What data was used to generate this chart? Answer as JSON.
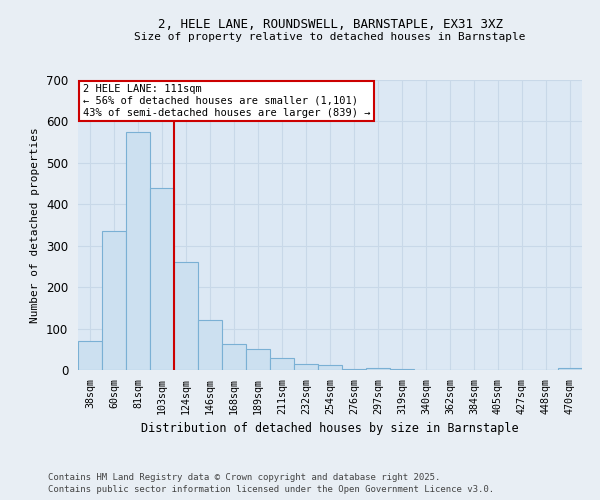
{
  "title1": "2, HELE LANE, ROUNDSWELL, BARNSTAPLE, EX31 3XZ",
  "title2": "Size of property relative to detached houses in Barnstaple",
  "xlabel": "Distribution of detached houses by size in Barnstaple",
  "ylabel": "Number of detached properties",
  "categories": [
    "38sqm",
    "60sqm",
    "81sqm",
    "103sqm",
    "124sqm",
    "146sqm",
    "168sqm",
    "189sqm",
    "211sqm",
    "232sqm",
    "254sqm",
    "276sqm",
    "297sqm",
    "319sqm",
    "340sqm",
    "362sqm",
    "384sqm",
    "405sqm",
    "427sqm",
    "448sqm",
    "470sqm"
  ],
  "values": [
    70,
    335,
    575,
    440,
    260,
    120,
    62,
    50,
    28,
    15,
    13,
    2,
    6,
    3,
    0,
    0,
    0,
    0,
    0,
    0,
    4
  ],
  "bar_color": "#cce0f0",
  "bar_edge_color": "#7ab0d4",
  "red_line_x": 3.5,
  "annotation_line1": "2 HELE LANE: 111sqm",
  "annotation_line2": "← 56% of detached houses are smaller (1,101)",
  "annotation_line3": "43% of semi-detached houses are larger (839) →",
  "annotation_box_color": "#ffffff",
  "annotation_box_edge": "#cc0000",
  "ylim": [
    0,
    700
  ],
  "yticks": [
    0,
    100,
    200,
    300,
    400,
    500,
    600,
    700
  ],
  "grid_color": "#c8d8e8",
  "background_color": "#dce8f4",
  "fig_background": "#e8eef4",
  "footer1": "Contains HM Land Registry data © Crown copyright and database right 2025.",
  "footer2": "Contains public sector information licensed under the Open Government Licence v3.0."
}
